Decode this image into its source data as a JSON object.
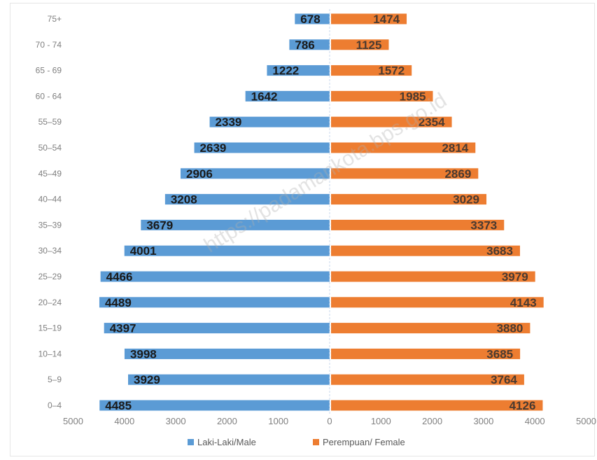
{
  "chart_data": {
    "type": "bar",
    "orientation": "horizontal",
    "layout": "population-pyramid",
    "categories": [
      "0–4",
      "5–9",
      "10–14",
      "15–19",
      "20–24",
      "25–29",
      "30–34",
      "35–39",
      "40–44",
      "45–49",
      "50–54",
      "55–59",
      "60 - 64",
      "65 - 69",
      "70 - 74",
      "75+"
    ],
    "series": [
      {
        "name": "Laki-Laki/Male",
        "color": "#5b9bd5",
        "side": "left",
        "values": [
          4485,
          3929,
          3998,
          4397,
          4489,
          4466,
          4001,
          3679,
          3208,
          2906,
          2639,
          2339,
          1642,
          1222,
          786,
          678
        ]
      },
      {
        "name": "Perempuan/ Female",
        "color": "#ed7d31",
        "side": "right",
        "values": [
          4126,
          3764,
          3685,
          3880,
          4143,
          3979,
          3683,
          3373,
          3029,
          2869,
          2814,
          2354,
          1985,
          1572,
          1125,
          1474
        ]
      }
    ],
    "xticks": [
      "5000",
      "4000",
      "3000",
      "2000",
      "1000",
      "0",
      "1000",
      "2000",
      "3000",
      "4000",
      "5000"
    ],
    "xlim": [
      -5000,
      5000
    ],
    "legend_position": "bottom",
    "grid": false
  },
  "watermark": "https://padamankota.bps.go.id"
}
